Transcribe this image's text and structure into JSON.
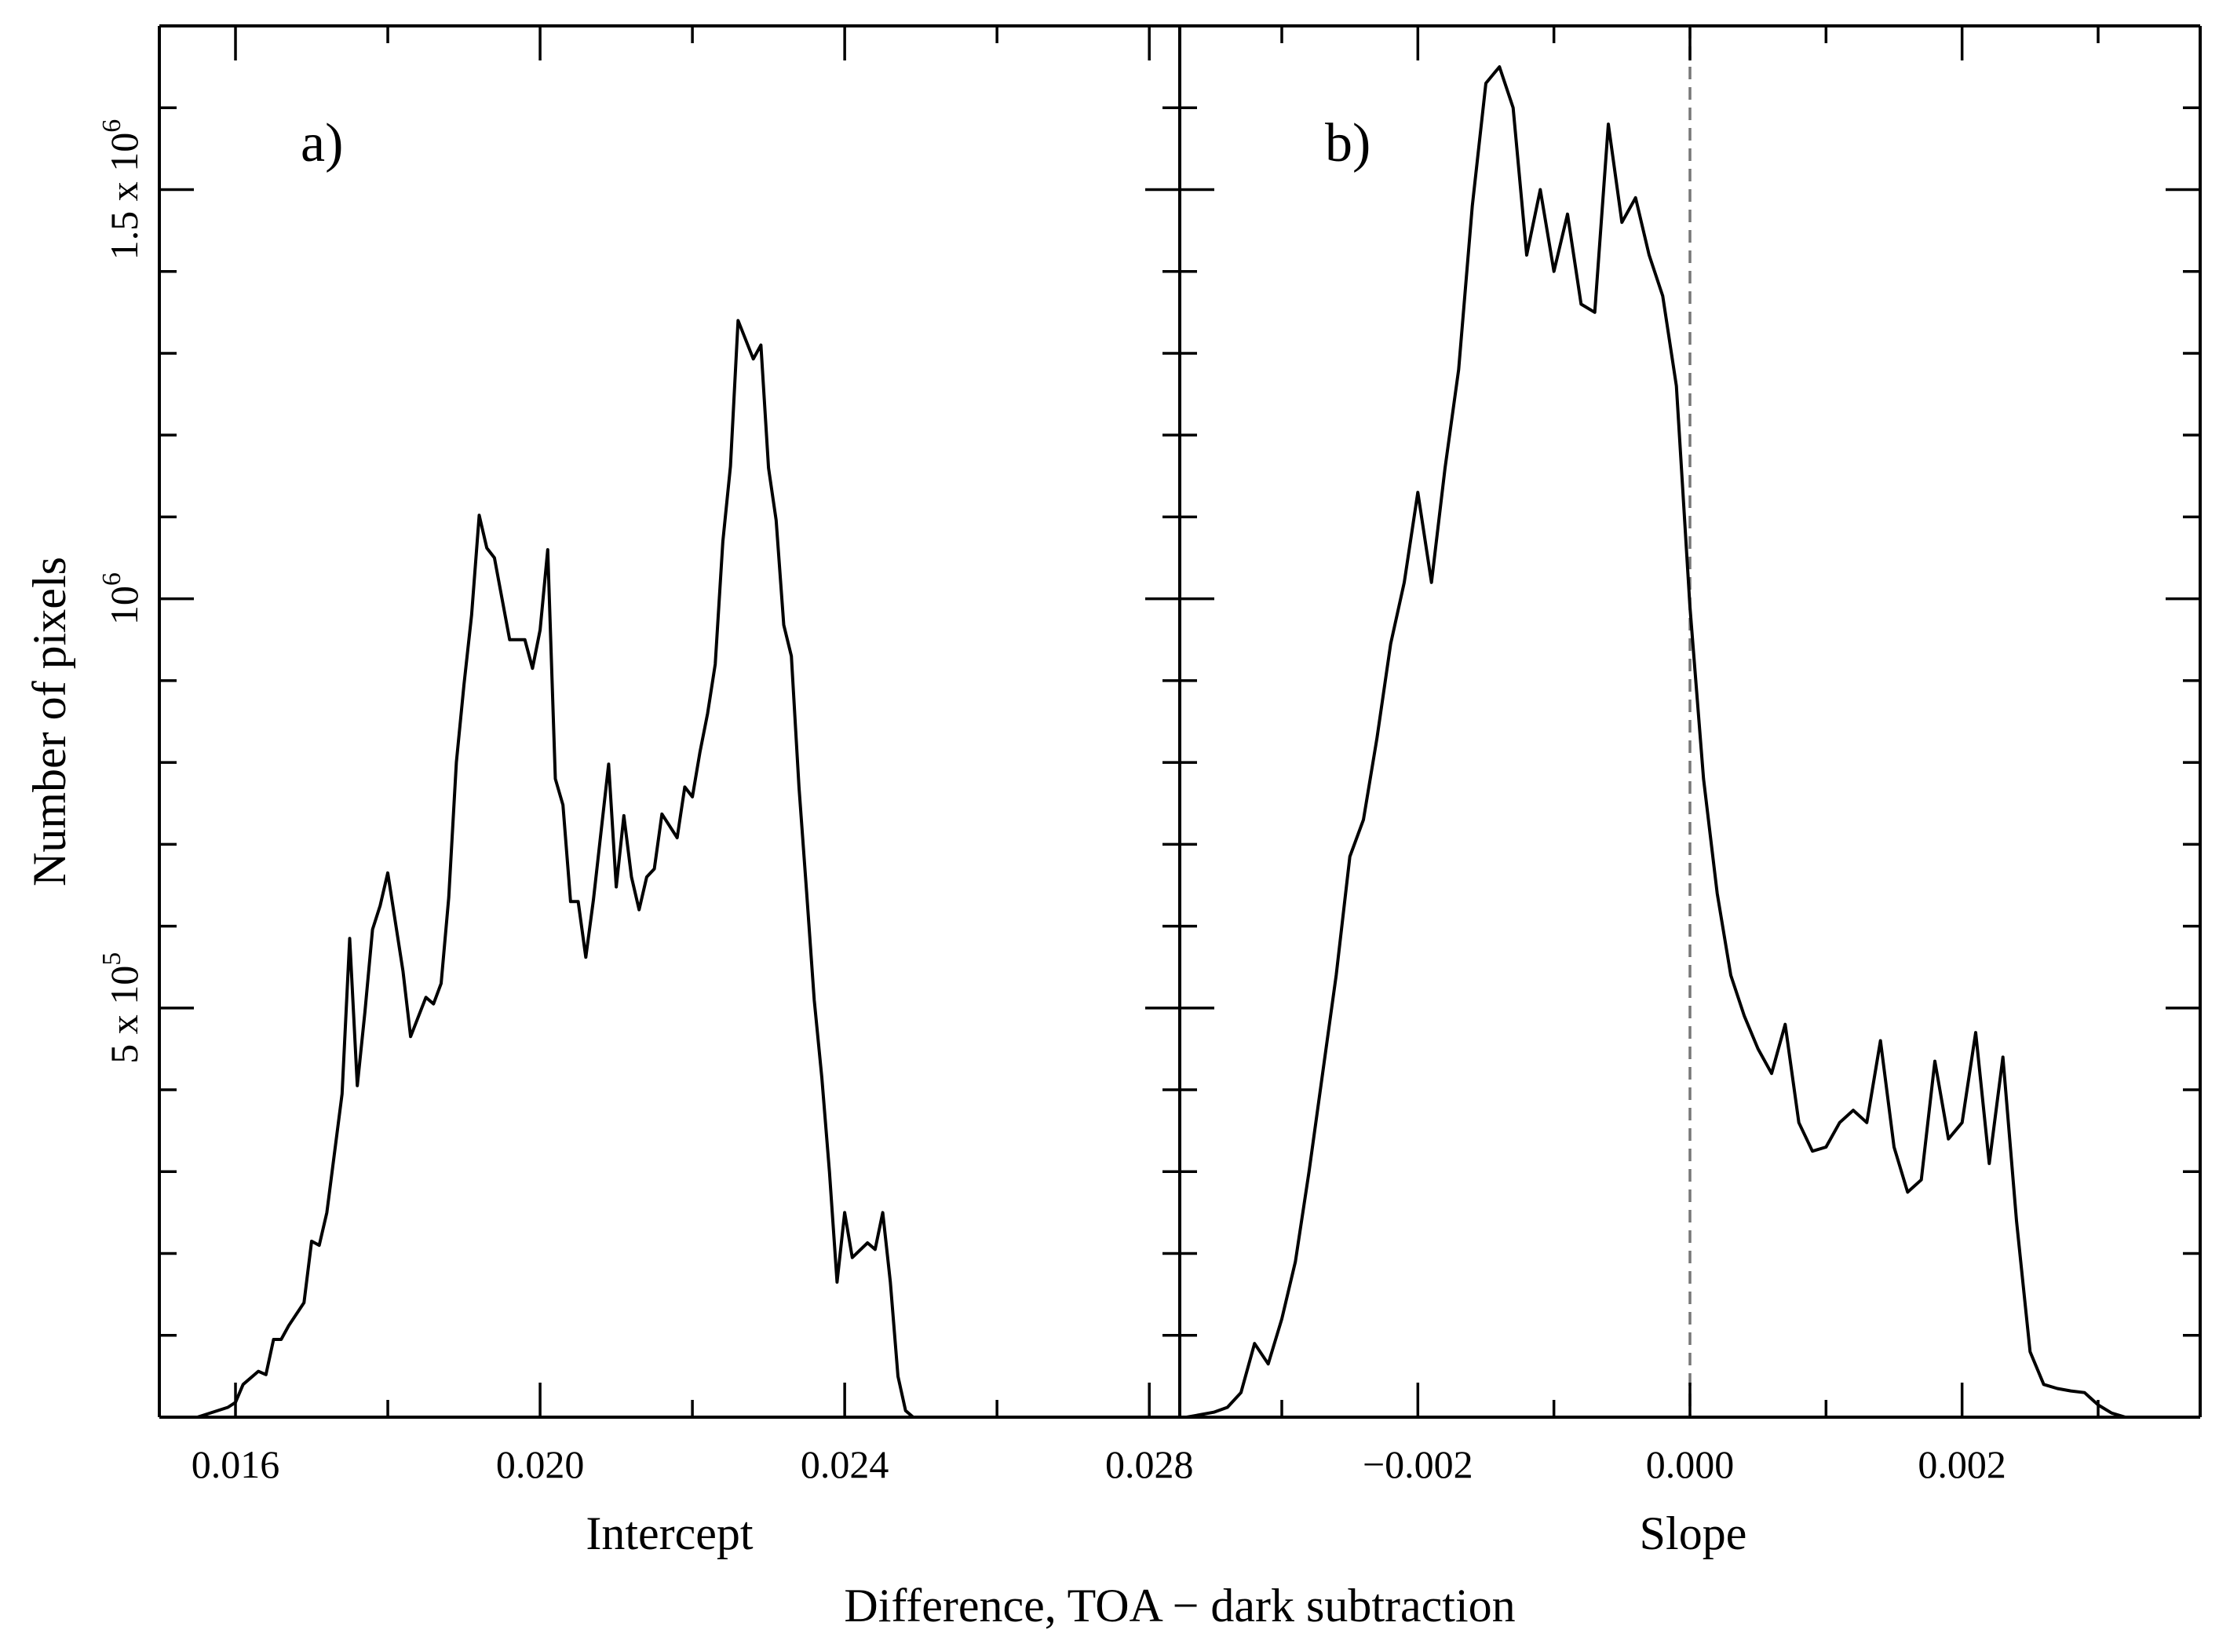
{
  "figure": {
    "shared_ylabel": "Number of pixels",
    "shared_xlabel": "Difference, TOA − dark subtraction",
    "yticks": [
      {
        "value": 500000,
        "mantissa": "5 x 10",
        "exp": "5"
      },
      {
        "value": 1000000,
        "mantissa": "10",
        "exp": "6"
      },
      {
        "value": 1500000,
        "mantissa": "1.5 x 10",
        "exp": "6"
      }
    ]
  },
  "chart_data": [
    {
      "type": "line",
      "panel_label": "a)",
      "xlabel": "Intercept",
      "ylabel": "Number of pixels",
      "xlim": [
        0.015,
        0.0284
      ],
      "ylim": [
        0,
        1700000
      ],
      "xticks": [
        {
          "value": 0.016,
          "label": "0.016"
        },
        {
          "value": 0.02,
          "label": "0.020"
        },
        {
          "value": 0.024,
          "label": "0.024"
        },
        {
          "value": 0.028,
          "label": "0.028"
        }
      ],
      "x": [
        0.0155,
        0.0159,
        0.016,
        0.0161,
        0.0163,
        0.0164,
        0.0165,
        0.0166,
        0.0167,
        0.0169,
        0.017,
        0.0171,
        0.0172,
        0.0174,
        0.0175,
        0.0176,
        0.0177,
        0.0178,
        0.0179,
        0.018,
        0.0182,
        0.0183,
        0.0185,
        0.0186,
        0.0187,
        0.0188,
        0.0189,
        0.019,
        0.0191,
        0.0192,
        0.0193,
        0.0194,
        0.0196,
        0.0198,
        0.0199,
        0.02,
        0.0201,
        0.0202,
        0.0203,
        0.0204,
        0.0205,
        0.0206,
        0.0207,
        0.0209,
        0.021,
        0.0211,
        0.0212,
        0.0213,
        0.0214,
        0.0215,
        0.0216,
        0.0218,
        0.0219,
        0.022,
        0.0221,
        0.0222,
        0.0223,
        0.0224,
        0.0225,
        0.0226,
        0.0228,
        0.0229,
        0.023,
        0.0231,
        0.0232,
        0.0233,
        0.0234,
        0.0235,
        0.0236,
        0.0237,
        0.0238,
        0.0239,
        0.024,
        0.0241,
        0.0243,
        0.0244,
        0.0245,
        0.0246,
        0.0247,
        0.0248,
        0.0249,
        0.025,
        0.0251,
        0.0252,
        0.0253,
        0.0254,
        0.0255,
        0.0256,
        0.0257,
        0.0258,
        0.026,
        0.0261,
        0.0262,
        0.0263,
        0.0264,
        0.0265,
        0.0266,
        0.0267,
        0.0268,
        0.027,
        0.0271,
        0.0272,
        0.0273,
        0.0274,
        0.0275,
        0.0276,
        0.0277,
        0.0278
      ],
      "series": [
        {
          "name": "Intercept",
          "values": [
            0,
            12000,
            18000,
            40000,
            56000,
            52000,
            95000,
            95000,
            112000,
            140000,
            215000,
            210000,
            250000,
            395000,
            585000,
            405000,
            495000,
            596000,
            625000,
            665000,
            545000,
            465000,
            513000,
            505000,
            530000,
            635000,
            800000,
            895000,
            980000,
            1102000,
            1062000,
            1050000,
            950000,
            950000,
            915000,
            962000,
            1060000,
            780000,
            748000,
            630000,
            630000,
            562000,
            632000,
            798000,
            648000,
            735000,
            660000,
            620000,
            660000,
            670000,
            737000,
            708000,
            770000,
            758000,
            813000,
            860000,
            920000,
            1070000,
            1162000,
            1340000,
            1293000,
            1310000,
            1160000,
            1096000,
            968000,
            930000,
            770000,
            642000,
            510000,
            415000,
            300000,
            165000,
            250000,
            195000,
            213000,
            205000,
            250000,
            165000,
            50000,
            8000,
            0,
            0,
            0,
            0,
            0,
            0,
            0,
            0,
            0,
            0,
            0,
            0,
            0,
            0,
            0,
            0,
            0,
            0,
            0,
            0,
            0,
            0,
            0,
            0,
            0,
            0,
            0,
            0
          ]
        }
      ]
    },
    {
      "type": "line",
      "panel_label": "b)",
      "xlabel": "Slope",
      "ylabel": "Number of pixels",
      "xlim": [
        -0.00375,
        0.00375
      ],
      "ylim": [
        0,
        1700000
      ],
      "xticks": [
        {
          "value": -0.002,
          "label": "−0.002"
        },
        {
          "value": 0.0,
          "label": "0.000"
        },
        {
          "value": 0.002,
          "label": "0.002"
        }
      ],
      "reference_line": {
        "x": 0.0,
        "style": "dashed"
      },
      "x": [
        -0.0037,
        -0.0036,
        -0.0035,
        -0.0034,
        -0.0033,
        -0.0032,
        -0.0031,
        -0.003,
        -0.0029,
        -0.0028,
        -0.0027,
        -0.0026,
        -0.0025,
        -0.0024,
        -0.0023,
        -0.0022,
        -0.0021,
        -0.002,
        -0.0019,
        -0.0018,
        -0.0017,
        -0.0016,
        -0.0015,
        -0.0014,
        -0.0013,
        -0.0012,
        -0.0011,
        -0.001,
        -0.0009,
        -0.0008,
        -0.0007,
        -0.0006,
        -0.0005,
        -0.0004,
        -0.0003,
        -0.0002,
        -0.0001,
        0.0,
        0.0001,
        0.0002,
        0.0003,
        0.0004,
        0.0005,
        0.0006,
        0.0007,
        0.0008,
        0.0009,
        0.001,
        0.0011,
        0.0012,
        0.0013,
        0.0014,
        0.0015,
        0.0016,
        0.0017,
        0.0018,
        0.0019,
        0.002,
        0.0021,
        0.0022,
        0.0023,
        0.0024,
        0.0025,
        0.0026,
        0.0027,
        0.0028,
        0.0029,
        0.003,
        0.0031,
        0.0032,
        0.0033,
        0.0034,
        0.0035,
        0.0036,
        0.0037
      ],
      "series": [
        {
          "name": "Slope",
          "values": [
            0,
            3000,
            6000,
            12000,
            30000,
            90000,
            65000,
            120000,
            190000,
            300000,
            420000,
            540000,
            685000,
            730000,
            830000,
            945000,
            1020000,
            1130000,
            1020000,
            1160000,
            1280000,
            1480000,
            1630000,
            1650000,
            1600000,
            1420000,
            1500000,
            1400000,
            1470000,
            1360000,
            1350000,
            1580000,
            1460000,
            1490000,
            1420000,
            1370000,
            1260000,
            990000,
            780000,
            640000,
            540000,
            490000,
            450000,
            420000,
            480000,
            360000,
            325000,
            330000,
            360000,
            375000,
            360000,
            460000,
            330000,
            275000,
            290000,
            435000,
            340000,
            360000,
            470000,
            310000,
            440000,
            240000,
            80000,
            40000,
            35000,
            32000,
            30000,
            15000,
            5000,
            0,
            0,
            0,
            0,
            0,
            0
          ]
        }
      ]
    }
  ]
}
